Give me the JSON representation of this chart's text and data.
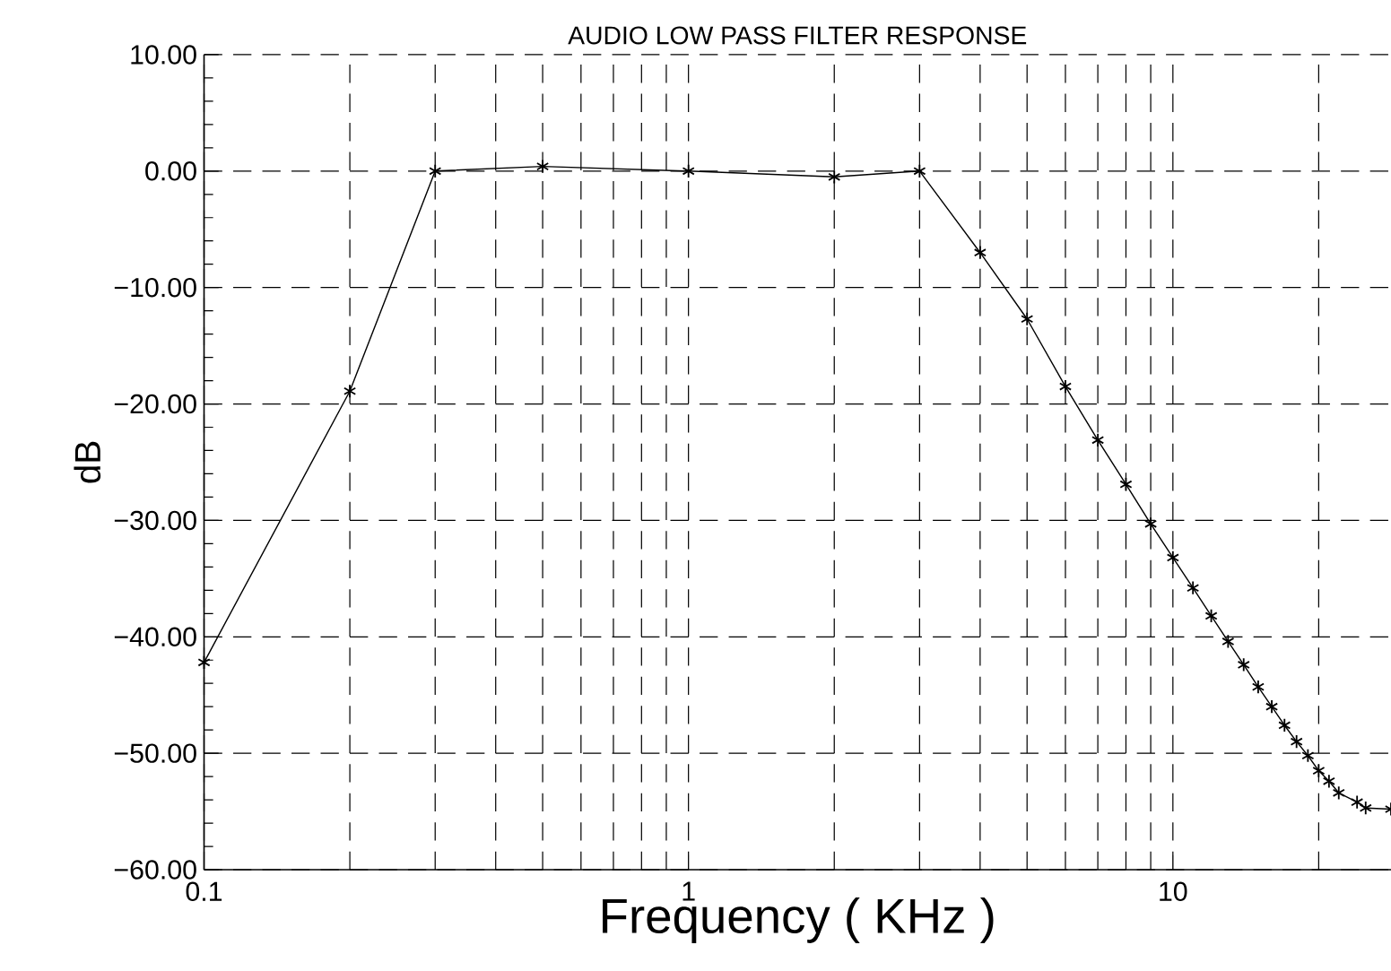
{
  "chart_data": {
    "type": "line",
    "title": "AUDIO LOW PASS FILTER RESPONSE",
    "xlabel": "Frequency ( KHz )",
    "ylabel": "dB",
    "x": [
      0.1,
      0.2,
      0.3,
      0.5,
      1,
      2,
      3,
      4,
      5,
      6,
      7,
      8,
      9,
      10,
      11,
      12,
      13,
      14,
      15,
      16,
      17,
      18,
      19,
      20,
      21,
      22,
      24,
      25,
      28.2
    ],
    "series": [
      {
        "color": "#000000",
        "values": [
          -42.2,
          -18.9,
          0,
          0.4,
          0,
          -0.5,
          0,
          -7.0,
          -12.7,
          -18.5,
          -23.1,
          -26.9,
          -30.3,
          -33.2,
          -35.8,
          -38.2,
          -40.4,
          -42.4,
          -44.3,
          -46.0,
          -47.6,
          -49.0,
          -50.2,
          -51.5,
          -52.4,
          -53.4,
          -54.2,
          -54.7,
          -54.8
        ]
      }
    ],
    "xlim": [
      0.1,
      28.2
    ],
    "ylim": [
      -60,
      10
    ],
    "xticks": [
      0.1,
      1,
      10
    ],
    "yticks": [
      {
        "value": 10,
        "label": "10.00"
      },
      {
        "value": 0,
        "label": "0.00"
      },
      {
        "value": -10,
        "label": "−10.00"
      },
      {
        "value": -20,
        "label": "−20.00"
      },
      {
        "value": -30,
        "label": "−30.00"
      },
      {
        "value": -40,
        "label": "−40.00"
      },
      {
        "value": -50,
        "label": "−50.00"
      },
      {
        "value": -60,
        "label": "−60.00"
      }
    ],
    "log": "x",
    "grid": true,
    "marker": "cross",
    "line_style": "solid"
  }
}
